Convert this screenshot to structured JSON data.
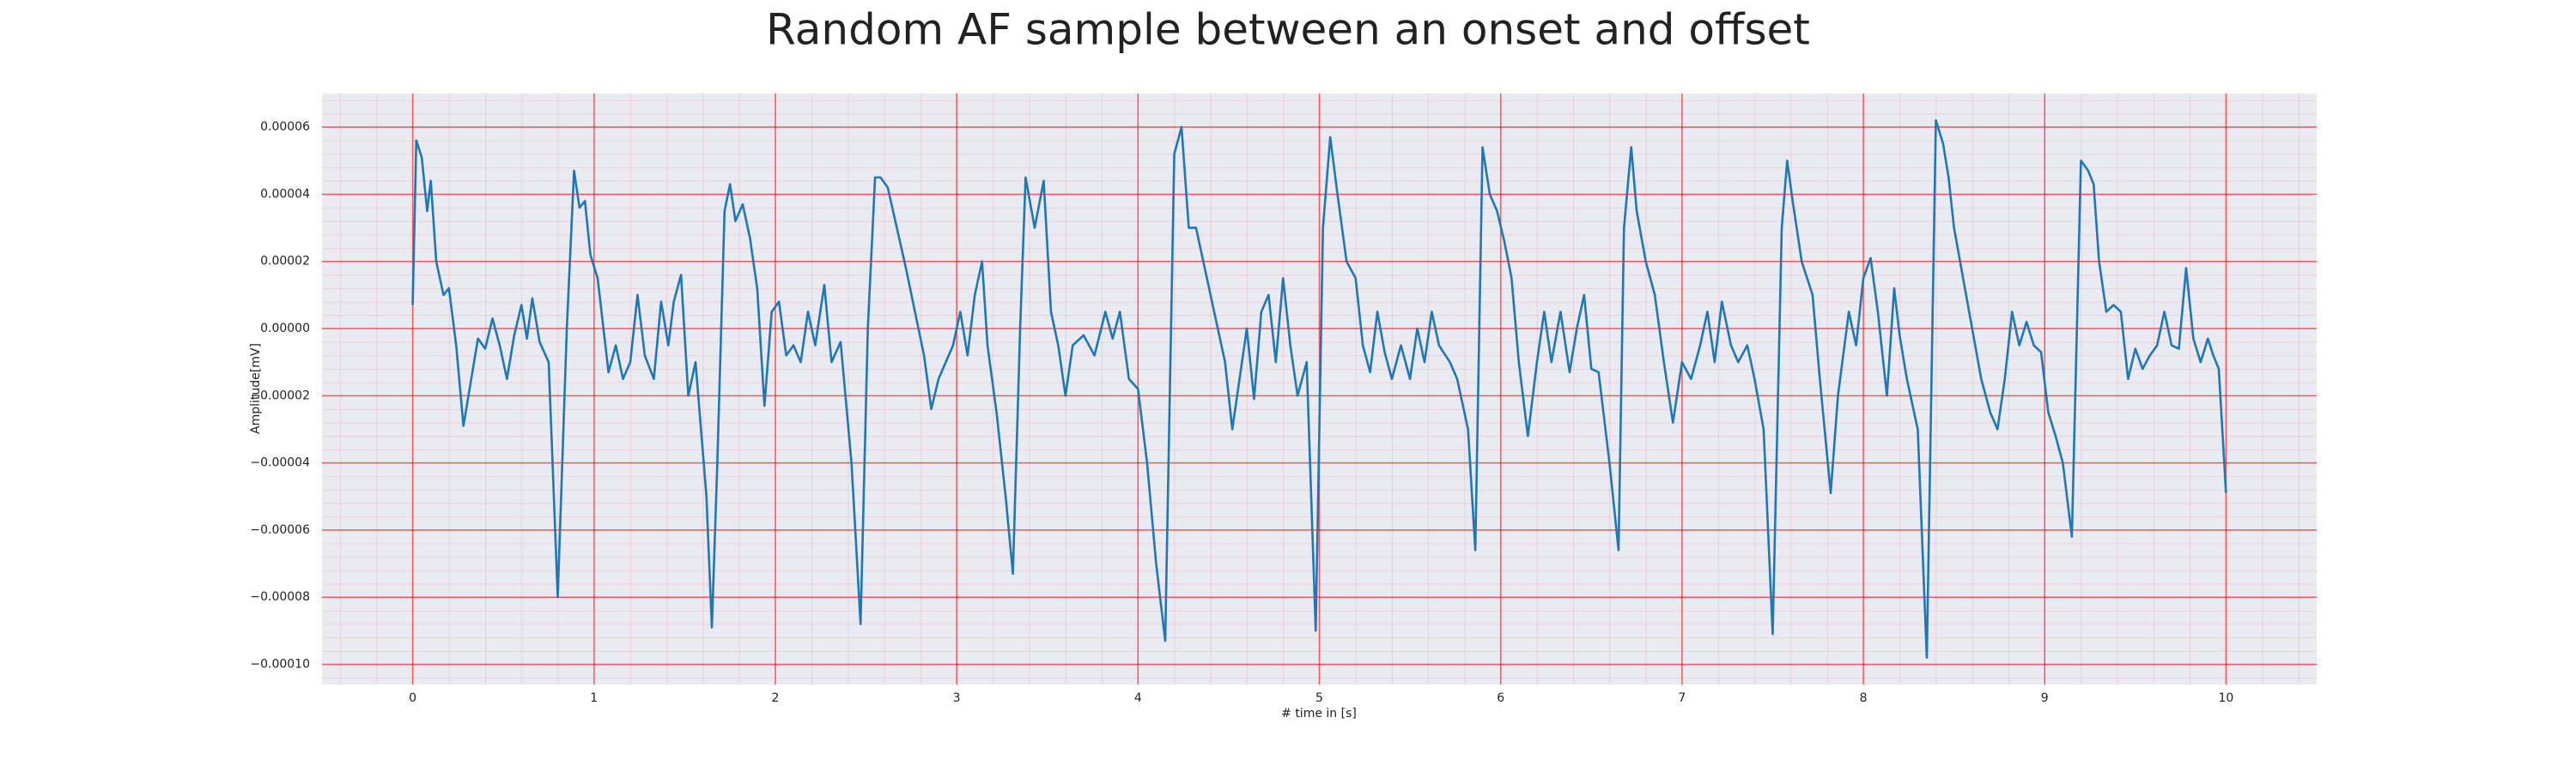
{
  "chart_data": {
    "type": "line",
    "title": "Random AF sample between an onset and offset",
    "x_label": "# time in [s]",
    "y_label": "Amplitude[mV]",
    "color": "#1f77b4",
    "grid": true,
    "xlim": [
      -0.5,
      10.5
    ],
    "ylim": [
      -0.000106,
      7e-05
    ],
    "xticks": [
      0,
      1,
      2,
      3,
      4,
      5,
      6,
      7,
      8,
      9,
      10
    ],
    "yticks": [
      {
        "value": -0.0001,
        "label": "−0.00010"
      },
      {
        "value": -8e-05,
        "label": "−0.00008"
      },
      {
        "value": -6e-05,
        "label": "−0.00006"
      },
      {
        "value": -4e-05,
        "label": "−0.00004"
      },
      {
        "value": -2e-05,
        "label": "−0.00002"
      },
      {
        "value": 0,
        "label": "0.00000"
      },
      {
        "value": 2e-05,
        "label": "0.00002"
      },
      {
        "value": 4e-05,
        "label": "0.00004"
      },
      {
        "value": 6e-05,
        "label": "0.00006"
      }
    ],
    "x": [
      0.0,
      0.02,
      0.05,
      0.08,
      0.1,
      0.13,
      0.17,
      0.2,
      0.24,
      0.28,
      0.32,
      0.36,
      0.4,
      0.44,
      0.48,
      0.52,
      0.56,
      0.6,
      0.63,
      0.66,
      0.7,
      0.75,
      0.8,
      0.85,
      0.89,
      0.92,
      0.95,
      0.98,
      1.02,
      1.08,
      1.12,
      1.16,
      1.2,
      1.24,
      1.28,
      1.33,
      1.37,
      1.41,
      1.44,
      1.48,
      1.52,
      1.56,
      1.62,
      1.65,
      1.68,
      1.72,
      1.75,
      1.78,
      1.82,
      1.86,
      1.9,
      1.94,
      1.98,
      2.02,
      2.06,
      2.1,
      2.14,
      2.18,
      2.22,
      2.27,
      2.31,
      2.36,
      2.42,
      2.47,
      2.51,
      2.55,
      2.58,
      2.62,
      2.67,
      2.72,
      2.77,
      2.82,
      2.86,
      2.9,
      2.94,
      2.98,
      3.02,
      3.06,
      3.1,
      3.14,
      3.17,
      3.22,
      3.27,
      3.31,
      3.35,
      3.38,
      3.43,
      3.48,
      3.52,
      3.56,
      3.6,
      3.64,
      3.7,
      3.76,
      3.82,
      3.86,
      3.9,
      3.95,
      4.0,
      4.05,
      4.1,
      4.15,
      4.2,
      4.24,
      4.28,
      4.32,
      4.36,
      4.42,
      4.48,
      4.52,
      4.56,
      4.6,
      4.64,
      4.68,
      4.72,
      4.76,
      4.8,
      4.84,
      4.88,
      4.93,
      4.98,
      5.02,
      5.06,
      5.1,
      5.15,
      5.2,
      5.24,
      5.28,
      5.32,
      5.36,
      5.4,
      5.45,
      5.5,
      5.54,
      5.58,
      5.62,
      5.66,
      5.72,
      5.76,
      5.82,
      5.86,
      5.9,
      5.94,
      5.98,
      6.02,
      6.06,
      6.1,
      6.15,
      6.2,
      6.24,
      6.28,
      6.33,
      6.38,
      6.42,
      6.46,
      6.5,
      6.54,
      6.6,
      6.65,
      6.68,
      6.72,
      6.75,
      6.8,
      6.85,
      6.9,
      6.95,
      7.0,
      7.05,
      7.1,
      7.14,
      7.18,
      7.22,
      7.27,
      7.31,
      7.36,
      7.4,
      7.45,
      7.5,
      7.55,
      7.58,
      7.61,
      7.66,
      7.72,
      7.76,
      7.82,
      7.86,
      7.92,
      7.96,
      8.0,
      8.04,
      8.08,
      8.13,
      8.17,
      8.2,
      8.24,
      8.3,
      8.35,
      8.4,
      8.44,
      8.47,
      8.5,
      8.55,
      8.6,
      8.65,
      8.7,
      8.74,
      8.78,
      8.82,
      8.86,
      8.9,
      8.94,
      8.98,
      9.02,
      9.06,
      9.1,
      9.15,
      9.2,
      9.24,
      9.27,
      9.3,
      9.34,
      9.38,
      9.42,
      9.46,
      9.5,
      9.54,
      9.58,
      9.62,
      9.66,
      9.7,
      9.74,
      9.78,
      9.82,
      9.86,
      9.9,
      9.93,
      9.96,
      10.0
    ],
    "values": [
      7e-06,
      5.6e-05,
      5.1e-05,
      3.5e-05,
      4.4e-05,
      2e-05,
      1e-05,
      1.2e-05,
      -5e-06,
      -2.9e-05,
      -1.6e-05,
      -3e-06,
      -6e-06,
      3e-06,
      -5e-06,
      -1.5e-05,
      -2e-06,
      7e-06,
      -3e-06,
      9e-06,
      -4e-06,
      -1e-05,
      -8e-05,
      0.0,
      4.7e-05,
      3.6e-05,
      3.8e-05,
      2.2e-05,
      1.5e-05,
      -1.3e-05,
      -5e-06,
      -1.5e-05,
      -1e-05,
      1e-05,
      -8e-06,
      -1.5e-05,
      8e-06,
      -5e-06,
      8e-06,
      1.6e-05,
      -2e-05,
      -1e-05,
      -5e-05,
      -8.9e-05,
      -4e-05,
      3.5e-05,
      4.3e-05,
      3.2e-05,
      3.7e-05,
      2.7e-05,
      1.2e-05,
      -2.3e-05,
      5e-06,
      8e-06,
      -8e-06,
      -5e-06,
      -1e-05,
      5e-06,
      -5e-06,
      1.3e-05,
      -1e-05,
      -4e-06,
      -4e-05,
      -8.8e-05,
      0.0,
      4.5e-05,
      4.5e-05,
      4.2e-05,
      3e-05,
      1.8e-05,
      5e-06,
      -8e-06,
      -2.4e-05,
      -1.5e-05,
      -1e-05,
      -5e-06,
      5e-06,
      -8e-06,
      1e-05,
      2e-05,
      -5e-06,
      -2.5e-05,
      -5e-05,
      -7.3e-05,
      0.0,
      4.5e-05,
      3e-05,
      4.4e-05,
      5e-06,
      -5e-06,
      -2e-05,
      -5e-06,
      -2e-06,
      -8e-06,
      5e-06,
      -3e-06,
      5e-06,
      -1.5e-05,
      -1.8e-05,
      -4e-05,
      -7e-05,
      -9.3e-05,
      5.2e-05,
      6e-05,
      3e-05,
      3e-05,
      2e-05,
      5e-06,
      -1e-05,
      -3e-05,
      -1.5e-05,
      0.0,
      -2.1e-05,
      5e-06,
      1e-05,
      -1e-05,
      1.5e-05,
      -5e-06,
      -2e-05,
      -1e-05,
      -9e-05,
      3e-05,
      5.7e-05,
      4e-05,
      2e-05,
      1.5e-05,
      -5e-06,
      -1.3e-05,
      5e-06,
      -7e-06,
      -1.5e-05,
      -5e-06,
      -1.5e-05,
      0.0,
      -1e-05,
      5e-06,
      -5e-06,
      -1e-05,
      -1.5e-05,
      -3e-05,
      -6.6e-05,
      5.4e-05,
      4e-05,
      3.5e-05,
      2.6e-05,
      1.5e-05,
      -1e-05,
      -3.2e-05,
      -1e-05,
      5e-06,
      -1e-05,
      5e-06,
      -1.3e-05,
      0.0,
      1e-05,
      -1.2e-05,
      -1.3e-05,
      -4e-05,
      -6.6e-05,
      3e-05,
      5.4e-05,
      3.5e-05,
      2e-05,
      1e-05,
      -1e-05,
      -2.8e-05,
      -1e-05,
      -1.5e-05,
      -5e-06,
      5e-06,
      -1e-05,
      8e-06,
      -5e-06,
      -1e-05,
      -5e-06,
      -1.5e-05,
      -3e-05,
      -9.1e-05,
      3e-05,
      5e-05,
      3.8e-05,
      2e-05,
      1e-05,
      -1.5e-05,
      -4.9e-05,
      -2e-05,
      5e-06,
      -5e-06,
      1.5e-05,
      2.1e-05,
      5e-06,
      -2e-05,
      1.2e-05,
      -2e-06,
      -1.5e-05,
      -3e-05,
      -9.8e-05,
      6.2e-05,
      5.5e-05,
      4.5e-05,
      3e-05,
      1.5e-05,
      0.0,
      -1.5e-05,
      -2.5e-05,
      -3e-05,
      -1.5e-05,
      5e-06,
      -5e-06,
      2e-06,
      -5e-06,
      -7e-06,
      -2.5e-05,
      -3.2e-05,
      -4e-05,
      -6.2e-05,
      5e-05,
      4.7e-05,
      4.3e-05,
      2e-05,
      5e-06,
      7e-06,
      5e-06,
      -1.5e-05,
      -6e-06,
      -1.2e-05,
      -8e-06,
      -5e-06,
      5e-06,
      -5e-06,
      -6e-06,
      1.8e-05,
      -3e-06,
      -1e-05,
      -3e-06,
      -8e-06,
      -1.2e-05,
      -4.9e-05
    ]
  }
}
